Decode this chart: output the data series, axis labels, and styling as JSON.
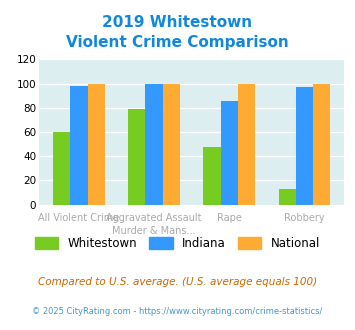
{
  "title_line1": "2019 Whitestown",
  "title_line2": "Violent Crime Comparison",
  "cat_labels_top": [
    "",
    "Aggravated Assault",
    "",
    ""
  ],
  "cat_labels_bot": [
    "All Violent Crime",
    "Murder & Mans...",
    "Rape",
    "Robbery"
  ],
  "whitestown": [
    60,
    79,
    48,
    13
  ],
  "indiana": [
    98,
    100,
    86,
    97
  ],
  "national": [
    100,
    100,
    100,
    100
  ],
  "color_whitestown": "#77cc22",
  "color_indiana": "#3399ff",
  "color_national": "#ffaa33",
  "ylim": [
    0,
    120
  ],
  "yticks": [
    0,
    20,
    40,
    60,
    80,
    100,
    120
  ],
  "bg_color": "#ddeef0",
  "legend_labels": [
    "Whitestown",
    "Indiana",
    "National"
  ],
  "footnote1": "Compared to U.S. average. (U.S. average equals 100)",
  "footnote2": "© 2025 CityRating.com - https://www.cityrating.com/crime-statistics/",
  "title_color": "#1188dd",
  "footnote1_color": "#cc6600",
  "footnote2_color": "#4499cc",
  "label_color": "#aaaaaa"
}
